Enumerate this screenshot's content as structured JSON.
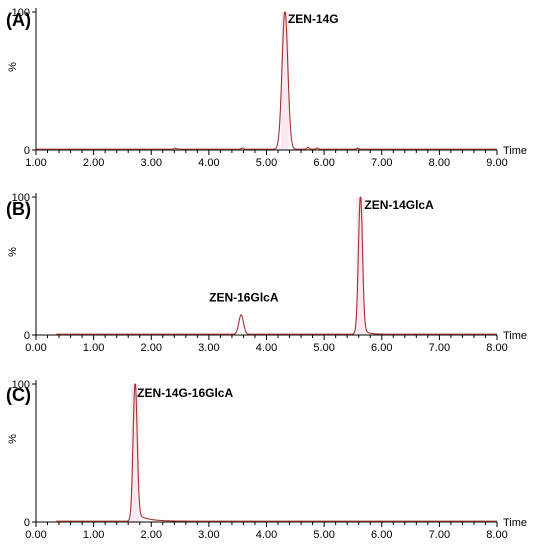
{
  "chart_data": [
    {
      "type": "line",
      "panel_label": "(A)",
      "xlabel": "Time",
      "ylabel": "%",
      "xlim": [
        1.0,
        9.0
      ],
      "ylim": [
        0,
        100
      ],
      "x_ticks": [
        "1.00",
        "2.00",
        "3.00",
        "4.00",
        "5.00",
        "6.00",
        "7.00",
        "8.00",
        "9.00"
      ],
      "y_ticks": [
        "0",
        "100"
      ],
      "line_color": "#a0332b",
      "peaks": [
        {
          "name": "ZEN-14G",
          "rt": 5.32,
          "height": 100,
          "width": 0.05,
          "tail": 0.0
        }
      ],
      "baseline_bumps": [
        {
          "rt": 3.42,
          "height": 0.8
        },
        {
          "rt": 4.58,
          "height": 0.8
        },
        {
          "rt": 5.72,
          "height": 1.2
        },
        {
          "rt": 5.88,
          "height": 0.8
        },
        {
          "rt": 6.58,
          "height": 0.8
        }
      ]
    },
    {
      "type": "line",
      "panel_label": "(B)",
      "xlabel": "Time",
      "ylabel": "%",
      "xlim": [
        0.0,
        8.0
      ],
      "ylim": [
        0,
        100
      ],
      "x_ticks": [
        "0.00",
        "1.00",
        "2.00",
        "3.00",
        "4.00",
        "5.00",
        "6.00",
        "7.00",
        "8.00"
      ],
      "y_ticks": [
        "0",
        "100"
      ],
      "line_color": "#a0332b",
      "peaks": [
        {
          "name": "ZEN-16GlcA",
          "rt": 3.56,
          "height": 14,
          "width": 0.04,
          "tail": 0.0
        },
        {
          "name": "ZEN-14GlcA",
          "rt": 5.63,
          "height": 100,
          "width": 0.035,
          "tail": 0.08
        }
      ],
      "baseline_bumps": []
    },
    {
      "type": "line",
      "panel_label": "(C)",
      "xlabel": "Time",
      "ylabel": "%",
      "xlim": [
        0.0,
        8.0
      ],
      "ylim": [
        0,
        100
      ],
      "x_ticks": [
        "0.00",
        "1.00",
        "2.00",
        "3.00",
        "4.00",
        "5.00",
        "6.00",
        "7.00",
        "8.00"
      ],
      "y_ticks": [
        "0",
        "100"
      ],
      "line_color": "#a0332b",
      "peaks": [
        {
          "name": "ZEN-14G-16GlcA",
          "rt": 1.72,
          "height": 100,
          "width": 0.035,
          "tail": 0.18
        }
      ],
      "baseline_bumps": []
    }
  ]
}
